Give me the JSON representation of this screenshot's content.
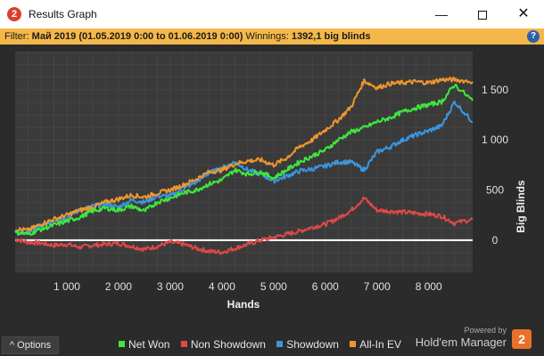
{
  "window": {
    "title": "Results Graph",
    "app_badge": "2",
    "min_glyph": "—",
    "close_glyph": "✕"
  },
  "filter": {
    "label": "Filter:",
    "value": "Май 2019 (01.05.2019 0:00 to 01.06.2019 0:00)",
    "winnings_label": "Winnings:",
    "winnings_value": "1392,1 big blinds",
    "help_glyph": "?"
  },
  "footer": {
    "options_label": "Options",
    "options_glyph": "^",
    "powered_by": "Powered by",
    "brand_name": "Hold'em Manager",
    "brand_badge": "2"
  },
  "colors": {
    "net_won": "#3ee83e",
    "non_showdown": "#e04848",
    "showdown": "#3a96e0",
    "all_in_ev": "#f0962e",
    "zero_line": "#ffffff"
  },
  "chart_data": {
    "type": "line",
    "xlabel": "Hands",
    "ylabel": "Big Blinds",
    "xlim": [
      0,
      8850
    ],
    "ylim": [
      -320,
      1880
    ],
    "x_ticks": [
      1000,
      2000,
      3000,
      4000,
      5000,
      6000,
      7000,
      8000
    ],
    "x_tick_labels": [
      "1 000",
      "2 000",
      "3 000",
      "4 000",
      "5 000",
      "6 000",
      "7 000",
      "8 000"
    ],
    "y_ticks": [
      0,
      500,
      1000,
      1500
    ],
    "y_tick_labels": [
      "0",
      "500",
      "1 000",
      "1 500"
    ],
    "grid": true,
    "legend_position": "bottom",
    "series": [
      {
        "name": "Net Won",
        "key": "net_won",
        "x": [
          0,
          250,
          500,
          750,
          1000,
          1250,
          1500,
          1750,
          2000,
          2250,
          2500,
          2750,
          3000,
          3250,
          3500,
          3750,
          4000,
          4250,
          4500,
          4750,
          5000,
          5250,
          5500,
          5750,
          6000,
          6250,
          6500,
          6750,
          7000,
          7250,
          7500,
          7750,
          8000,
          8250,
          8500,
          8850
        ],
        "y": [
          80,
          60,
          110,
          150,
          190,
          230,
          290,
          320,
          300,
          340,
          290,
          380,
          420,
          470,
          500,
          560,
          600,
          700,
          660,
          680,
          620,
          700,
          780,
          840,
          900,
          1000,
          1080,
          1120,
          1180,
          1220,
          1280,
          1320,
          1350,
          1380,
          1550,
          1392
        ]
      },
      {
        "name": "Non Showdown",
        "key": "non_showdown",
        "x": [
          0,
          250,
          500,
          750,
          1000,
          1250,
          1500,
          1750,
          2000,
          2250,
          2500,
          2750,
          3000,
          3250,
          3500,
          3750,
          4000,
          4250,
          4500,
          4750,
          5000,
          5250,
          5500,
          5750,
          6000,
          6250,
          6500,
          6750,
          7000,
          7250,
          7500,
          7750,
          8000,
          8250,
          8500,
          8850
        ],
        "y": [
          10,
          -20,
          -30,
          -50,
          -40,
          -70,
          -50,
          -40,
          -30,
          -60,
          -90,
          -60,
          -20,
          -40,
          -80,
          -110,
          -120,
          -80,
          -40,
          0,
          30,
          60,
          90,
          130,
          160,
          220,
          300,
          420,
          300,
          290,
          280,
          270,
          260,
          240,
          170,
          210
        ]
      },
      {
        "name": "Showdown",
        "key": "showdown",
        "x": [
          0,
          250,
          500,
          750,
          1000,
          1250,
          1500,
          1750,
          2000,
          2250,
          2500,
          2750,
          3000,
          3250,
          3500,
          3750,
          4000,
          4250,
          4500,
          4750,
          5000,
          5250,
          5500,
          5750,
          6000,
          6250,
          6500,
          6750,
          7000,
          7250,
          7500,
          7750,
          8000,
          8250,
          8500,
          8850
        ],
        "y": [
          70,
          80,
          140,
          200,
          230,
          300,
          340,
          360,
          330,
          400,
          380,
          440,
          440,
          510,
          580,
          670,
          720,
          780,
          700,
          660,
          590,
          640,
          690,
          710,
          740,
          780,
          780,
          700,
          880,
          930,
          1000,
          1050,
          1090,
          1140,
          1380,
          1180
        ]
      },
      {
        "name": "All-In EV",
        "key": "all_in_ev",
        "x": [
          0,
          250,
          500,
          750,
          1000,
          1250,
          1500,
          1750,
          2000,
          2250,
          2500,
          2750,
          3000,
          3250,
          3500,
          3750,
          4000,
          4250,
          4500,
          4750,
          5000,
          5250,
          5500,
          5750,
          6000,
          6250,
          6500,
          6750,
          7000,
          7250,
          7500,
          7750,
          8000,
          8250,
          8500,
          8850
        ],
        "y": [
          110,
          100,
          160,
          210,
          250,
          300,
          330,
          380,
          410,
          450,
          430,
          470,
          500,
          550,
          610,
          680,
          700,
          760,
          790,
          800,
          750,
          820,
          930,
          1000,
          1100,
          1200,
          1330,
          1590,
          1520,
          1560,
          1570,
          1580,
          1570,
          1600,
          1600,
          1580
        ]
      }
    ]
  }
}
